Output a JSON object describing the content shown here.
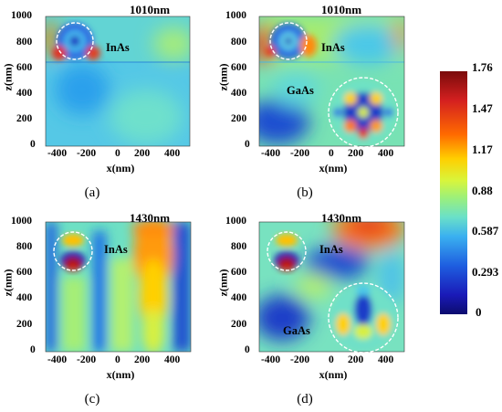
{
  "panels": [
    {
      "id": "a",
      "title": "1010nm",
      "caption": "(a)",
      "xlabel": "x(nm)",
      "ylabel": "z(nm)",
      "materials": [
        "InAs"
      ],
      "yticks": [
        "1000",
        "800",
        "600",
        "400",
        "200",
        "0"
      ],
      "xticks": [
        "-400",
        "-200",
        "0",
        "200",
        "400"
      ]
    },
    {
      "id": "b",
      "title": "1010nm",
      "caption": "(b)",
      "xlabel": "x(nm)",
      "ylabel": "z(nm)",
      "materials": [
        "InAs",
        "GaAs"
      ],
      "yticks": [
        "1000",
        "800",
        "600",
        "400",
        "200",
        "0"
      ],
      "xticks": [
        "-400",
        "-200",
        "0",
        "200",
        "400"
      ]
    },
    {
      "id": "c",
      "title": "1430nm",
      "caption": "(c)",
      "xlabel": "x(nm)",
      "ylabel": "z(nm)",
      "materials": [
        "InAs"
      ],
      "yticks": [
        "1000",
        "800",
        "600",
        "400",
        "200",
        "0"
      ],
      "xticks": [
        "-400",
        "-200",
        "0",
        "200",
        "400"
      ]
    },
    {
      "id": "d",
      "title": "1430nm",
      "caption": "(d)",
      "xlabel": "x(nm)",
      "ylabel": "z(nm)",
      "materials": [
        "InAs",
        "GaAs"
      ],
      "yticks": [
        "1000",
        "800",
        "600",
        "400",
        "200",
        "0"
      ],
      "xticks": [
        "-400",
        "-200",
        "0",
        "200",
        "400"
      ]
    }
  ],
  "colorbar": {
    "ticks": [
      "1.76",
      "1.47",
      "1.17",
      "0.88",
      "0.587",
      "0.293",
      "0"
    ],
    "colors": [
      "#7a0a0a",
      "#d42020",
      "#ff6a00",
      "#ffcf00",
      "#d8f53c",
      "#9cf07a",
      "#6ae0c8",
      "#3ab0f0",
      "#1e5ee0",
      "#1a1ab8",
      "#0c0c6e"
    ]
  },
  "colors": {
    "dashed_circle": "#ffffff"
  }
}
